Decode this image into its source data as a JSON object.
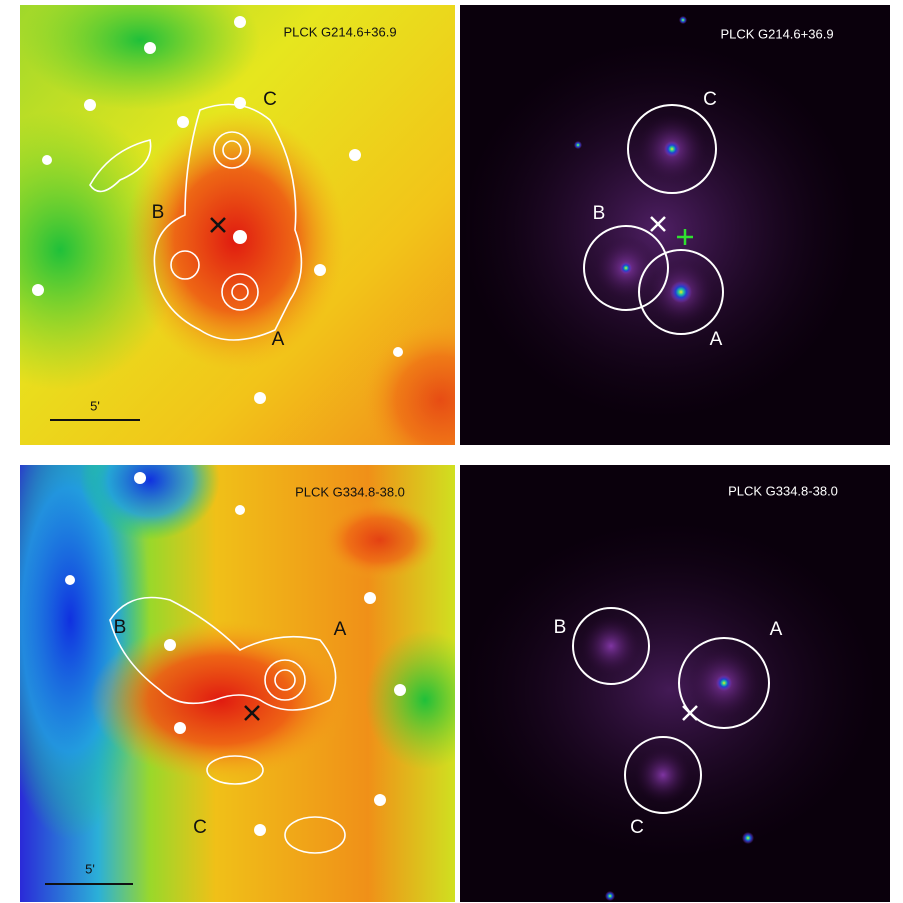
{
  "panels": [
    {
      "title": "PLCK G214.6+36.9",
      "labels": [
        "A",
        "B",
        "C"
      ],
      "scale": "5'"
    },
    {
      "title": "PLCK G214.6+36.9",
      "labels": [
        "A",
        "B",
        "C"
      ]
    },
    {
      "title": "PLCK G334.8-38.0",
      "labels": [
        "A",
        "B",
        "C"
      ],
      "scale": "5'"
    },
    {
      "title": "PLCK G334.8-38.0",
      "labels": [
        "A",
        "B",
        "C"
      ]
    }
  ]
}
